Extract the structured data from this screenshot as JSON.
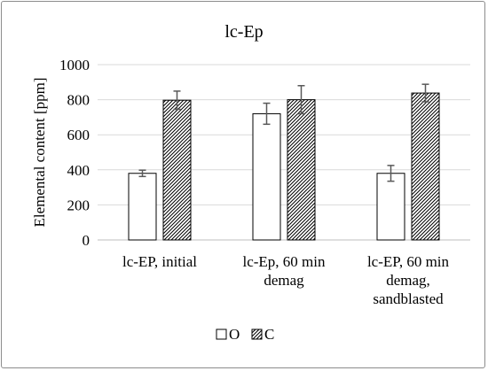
{
  "chart_data": {
    "type": "bar",
    "title": "lc-Ep",
    "xlabel": "",
    "ylabel": "Elemental content [ppm]",
    "ylim": [
      0,
      1000
    ],
    "yticks": [
      0,
      200,
      400,
      600,
      800,
      1000
    ],
    "categories": [
      [
        "lc-EP, initial"
      ],
      [
        "lc-Ep, 60 min",
        "demag"
      ],
      [
        "lc-EP, 60 min",
        "demag,",
        "sandblasted"
      ]
    ],
    "series": [
      {
        "name": "O",
        "values": [
          380,
          720,
          380
        ],
        "errors": [
          18,
          60,
          45
        ],
        "fill": "#ffffff",
        "pattern": "none"
      },
      {
        "name": "C",
        "values": [
          797,
          800,
          838
        ],
        "errors": [
          52,
          80,
          50
        ],
        "fill": "#ffffff",
        "pattern": "diagonal-hatch"
      }
    ],
    "grid": true,
    "legend_position": "bottom",
    "colors": {
      "axis": "#bfbfbf",
      "grid": "#d9d9d9",
      "bar_stroke": "#000000",
      "hatch": "#000000",
      "error_bar": "#595959"
    }
  }
}
